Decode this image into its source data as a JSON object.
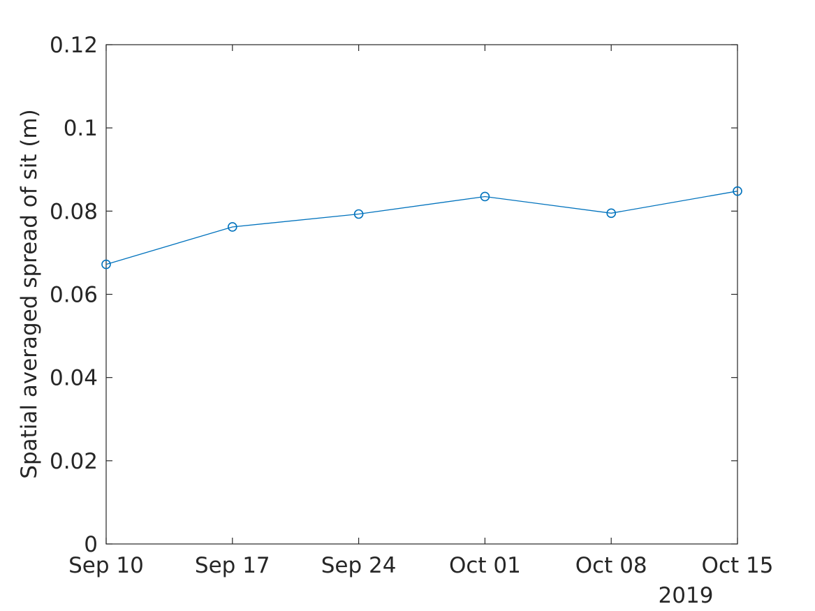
{
  "chart_data": {
    "type": "line",
    "title": "",
    "xlabel": "",
    "ylabel": "Spatial averaged spread of sit (m)",
    "x": [
      "2019-09-10",
      "2019-09-17",
      "2019-09-24",
      "2019-10-01",
      "2019-10-08",
      "2019-10-15"
    ],
    "x_tick_labels": [
      "Sep 10",
      "Sep 17",
      "Sep 24",
      "Oct 01",
      "Oct 08",
      "Oct 15"
    ],
    "x_secondary_label": "2019",
    "xlim": [
      "2019-09-10",
      "2019-10-15"
    ],
    "y_ticks": [
      0,
      0.02,
      0.04,
      0.06,
      0.08,
      0.1,
      0.12
    ],
    "y_tick_labels": [
      "0",
      "0.02",
      "0.04",
      "0.06",
      "0.08",
      "0.1",
      "0.12"
    ],
    "ylim": [
      0,
      0.12
    ],
    "series": [
      {
        "values": [
          0.0672,
          0.0762,
          0.0793,
          0.0835,
          0.0795,
          0.0848
        ],
        "color": "#0072BD",
        "marker": "circle"
      }
    ],
    "grid": false
  }
}
